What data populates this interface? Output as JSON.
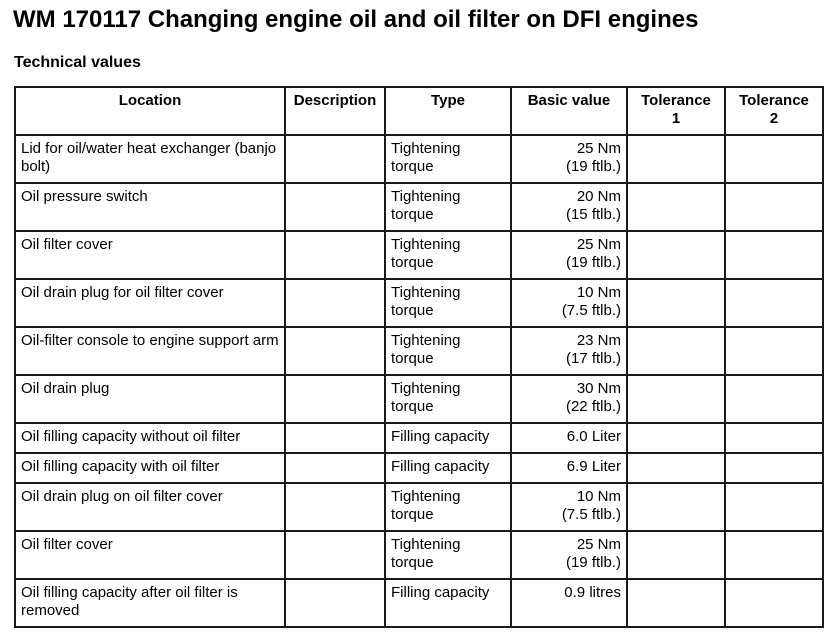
{
  "document": {
    "title": "WM 170117 Changing engine oil and oil filter on DFI engines",
    "section_heading": "Technical values"
  },
  "table": {
    "columns": [
      {
        "label": "Location"
      },
      {
        "label": "Description"
      },
      {
        "label": "Type"
      },
      {
        "label": "Basic value"
      },
      {
        "label_line1": "Tolerance",
        "label_line2": "1"
      },
      {
        "label_line1": "Tolerance",
        "label_line2": "2"
      }
    ],
    "rows": [
      {
        "location": "Lid for oil/water heat exchanger (banjo bolt)",
        "description": "",
        "type": "Tightening torque",
        "value_line1": "25 Nm",
        "value_line2": "(19 ftlb.)",
        "tolerance1": "",
        "tolerance2": ""
      },
      {
        "location": "Oil pressure switch",
        "description": "",
        "type": "Tightening torque",
        "value_line1": "20 Nm",
        "value_line2": "(15 ftlb.)",
        "tolerance1": "",
        "tolerance2": ""
      },
      {
        "location": "Oil filter cover",
        "description": "",
        "type": "Tightening torque",
        "value_line1": "25 Nm",
        "value_line2": "(19 ftlb.)",
        "tolerance1": "",
        "tolerance2": ""
      },
      {
        "location": "Oil drain plug for oil filter cover",
        "description": "",
        "type": "Tightening torque",
        "value_line1": "10 Nm",
        "value_line2": "(7.5 ftlb.)",
        "tolerance1": "",
        "tolerance2": ""
      },
      {
        "location": "Oil-filter console to engine support arm",
        "description": "",
        "type": "Tightening torque",
        "value_line1": "23 Nm",
        "value_line2": "(17 ftlb.)",
        "tolerance1": "",
        "tolerance2": ""
      },
      {
        "location": "Oil drain plug",
        "description": "",
        "type": "Tightening torque",
        "value_line1": "30 Nm",
        "value_line2": "(22 ftlb.)",
        "tolerance1": "",
        "tolerance2": ""
      },
      {
        "location": "Oil filling capacity without oil filter",
        "description": "",
        "type": "Filling capacity",
        "value_line1": "6.0 Liter",
        "value_line2": "",
        "tolerance1": "",
        "tolerance2": ""
      },
      {
        "location": "Oil filling capacity with oil filter",
        "description": "",
        "type": "Filling capacity",
        "value_line1": "6.9 Liter",
        "value_line2": "",
        "tolerance1": "",
        "tolerance2": ""
      },
      {
        "location": "Oil drain plug on oil filter cover",
        "description": "",
        "type": "Tightening torque",
        "value_line1": "10 Nm",
        "value_line2": "(7.5 ftlb.)",
        "tolerance1": "",
        "tolerance2": ""
      },
      {
        "location": "Oil filter cover",
        "description": "",
        "type": "Tightening torque",
        "value_line1": "25 Nm",
        "value_line2": "(19 ftlb.)",
        "tolerance1": "",
        "tolerance2": ""
      },
      {
        "location": "Oil filling capacity after oil filter is removed",
        "description": "",
        "type": "Filling capacity",
        "value_line1": "0.9 litres",
        "value_line2": "",
        "tolerance1": "",
        "tolerance2": ""
      }
    ]
  }
}
